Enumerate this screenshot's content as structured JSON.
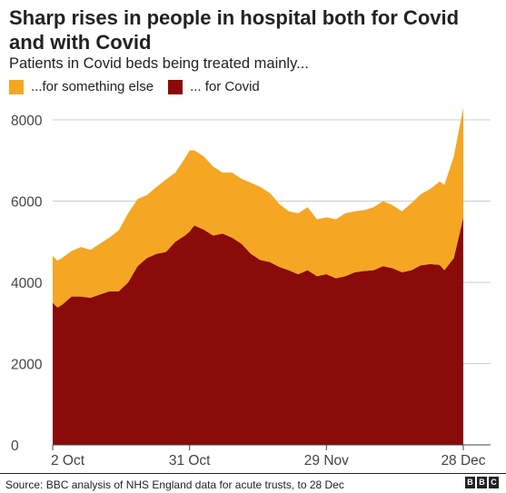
{
  "header": {
    "title": "Sharp rises in people in hospital both for Covid and with Covid",
    "subtitle": "Patients in Covid beds being treated mainly..."
  },
  "legend": [
    {
      "label": "...for something else",
      "color": "#F5A623"
    },
    {
      "label": "... for Covid",
      "color": "#8B0A0A"
    }
  ],
  "footer": {
    "source": "Source: BBC analysis of NHS England data for acute trusts, to 28 Dec",
    "logo": [
      "B",
      "B",
      "C"
    ]
  },
  "chart_data": {
    "type": "area",
    "stacked": true,
    "grid": true,
    "ylim": [
      0,
      8000
    ],
    "yticks": [
      0,
      2000,
      4000,
      6000,
      8000
    ],
    "ytick_labels": [
      "0",
      "2000",
      "4000",
      "6000",
      "8000"
    ],
    "xlim": [
      "2021-10-02",
      "2021-12-28"
    ],
    "xticks": [
      "2021-10-02",
      "2021-10-31",
      "2021-11-29",
      "2021-12-28"
    ],
    "xtick_labels": [
      "2 Oct",
      "31 Oct",
      "29 Nov",
      "28 Dec"
    ],
    "x": [
      "2021-10-02",
      "2021-10-03",
      "2021-10-04",
      "2021-10-06",
      "2021-10-08",
      "2021-10-10",
      "2021-10-12",
      "2021-10-14",
      "2021-10-16",
      "2021-10-18",
      "2021-10-20",
      "2021-10-22",
      "2021-10-24",
      "2021-10-26",
      "2021-10-28",
      "2021-10-30",
      "2021-10-31",
      "2021-11-01",
      "2021-11-03",
      "2021-11-05",
      "2021-11-07",
      "2021-11-09",
      "2021-11-11",
      "2021-11-13",
      "2021-11-15",
      "2021-11-17",
      "2021-11-19",
      "2021-11-21",
      "2021-11-23",
      "2021-11-25",
      "2021-11-27",
      "2021-11-29",
      "2021-12-01",
      "2021-12-03",
      "2021-12-05",
      "2021-12-07",
      "2021-12-09",
      "2021-12-11",
      "2021-12-13",
      "2021-12-15",
      "2021-12-17",
      "2021-12-19",
      "2021-12-21",
      "2021-12-23",
      "2021-12-24",
      "2021-12-26",
      "2021-12-28"
    ],
    "series": [
      {
        "name": "... for Covid",
        "color": "#8B0A0A",
        "values": [
          3500,
          3380,
          3450,
          3650,
          3650,
          3620,
          3700,
          3780,
          3780,
          4000,
          4400,
          4600,
          4700,
          4750,
          5000,
          5150,
          5250,
          5400,
          5300,
          5150,
          5200,
          5100,
          4950,
          4700,
          4550,
          4500,
          4380,
          4300,
          4200,
          4300,
          4150,
          4200,
          4100,
          4150,
          4250,
          4280,
          4300,
          4400,
          4350,
          4250,
          4300,
          4420,
          4450,
          4430,
          4300,
          4600,
          5600
        ]
      },
      {
        "name": "...for something else",
        "color": "#F5A623",
        "values": [
          1150,
          1150,
          1150,
          1120,
          1220,
          1180,
          1250,
          1320,
          1500,
          1700,
          1650,
          1550,
          1650,
          1780,
          1700,
          1900,
          2000,
          1850,
          1800,
          1700,
          1500,
          1600,
          1600,
          1750,
          1800,
          1700,
          1550,
          1450,
          1500,
          1550,
          1400,
          1400,
          1450,
          1550,
          1500,
          1500,
          1550,
          1600,
          1550,
          1500,
          1650,
          1750,
          1850,
          2050,
          2100,
          2500,
          2700
        ]
      }
    ]
  }
}
